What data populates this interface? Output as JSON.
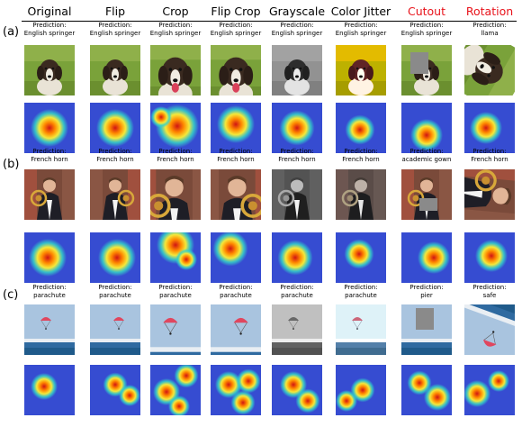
{
  "headers": [
    {
      "label": "Original",
      "red": false
    },
    {
      "label": "Flip",
      "red": false
    },
    {
      "label": "Crop",
      "red": false
    },
    {
      "label": "Flip Crop",
      "red": false
    },
    {
      "label": "Grayscale",
      "red": false
    },
    {
      "label": "Color Jitter",
      "red": false
    },
    {
      "label": "Cutout",
      "red": true
    },
    {
      "label": "Rotation",
      "red": true
    }
  ],
  "prediction_prefix": "Prediction:",
  "rows": [
    {
      "label": "(a)",
      "subject": "dog",
      "predictions": [
        "English springer",
        "English springer",
        "English springer",
        "English springer",
        "English springer",
        "English springer",
        "English springer",
        "llama"
      ]
    },
    {
      "label": "(b)",
      "subject": "horn",
      "predictions": [
        "French horn",
        "French horn",
        "French horn",
        "French horn",
        "French horn",
        "French horn",
        "academic gown",
        "French horn"
      ]
    },
    {
      "label": "(c)",
      "subject": "parachute",
      "predictions": [
        "parachute",
        "parachute",
        "parachute",
        "parachute",
        "parachute",
        "parachute",
        "pier",
        "safe"
      ]
    }
  ],
  "colors": {
    "red_header": "#e8131b",
    "cam_low": "#1a2bd0",
    "cam_high": "#d01414"
  }
}
